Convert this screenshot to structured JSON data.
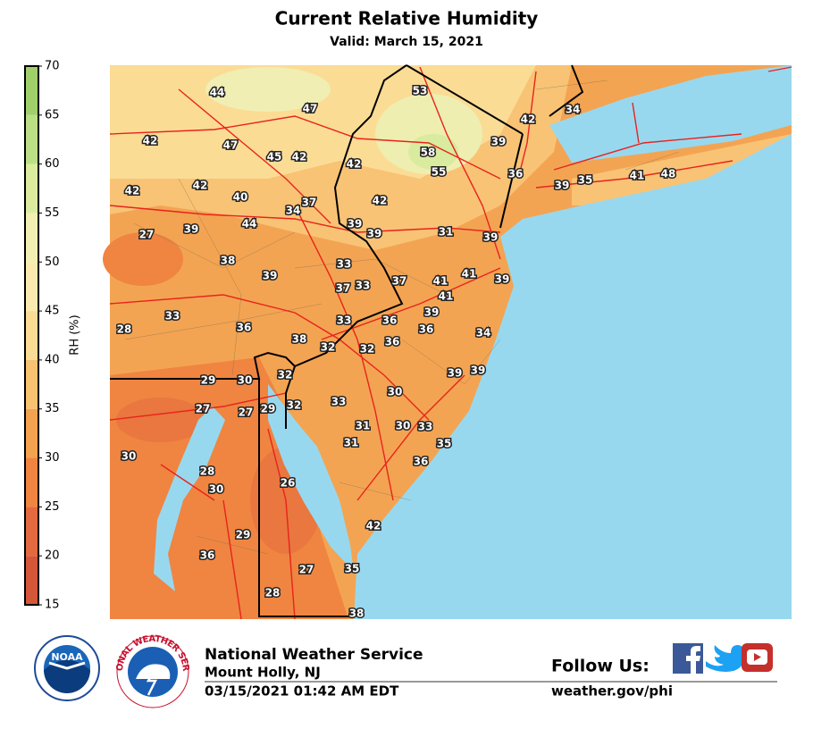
{
  "header": {
    "title": "Current Relative Humidity",
    "subtitle": "Valid: March 15, 2021"
  },
  "legend": {
    "label": "RH (%)",
    "range": [
      15,
      70
    ],
    "ticks": [
      15,
      20,
      25,
      30,
      35,
      40,
      45,
      50,
      55,
      60,
      65,
      70
    ],
    "colors": [
      "#d5573a",
      "#e26a3e",
      "#ef8541",
      "#f3a24f",
      "#f8c271",
      "#fbdc95",
      "#fbeab0",
      "#f1efb4",
      "#dcec9f",
      "#bcdf86",
      "#a1d06b"
    ]
  },
  "stations": {
    "values": [
      44,
      47,
      53,
      42,
      34,
      42,
      47,
      45,
      42,
      42,
      58,
      39,
      55,
      36,
      42,
      42,
      40,
      37,
      34,
      42,
      39,
      35,
      41,
      48,
      27,
      39,
      44,
      39,
      39,
      31,
      39,
      38,
      33,
      39,
      41,
      39,
      37,
      33,
      37,
      41,
      41,
      33,
      39,
      28,
      36,
      33,
      36,
      36,
      34,
      38,
      32,
      32,
      36,
      39,
      39,
      29,
      30,
      32,
      30,
      27,
      27,
      29,
      32,
      33,
      31,
      30,
      33,
      35,
      31,
      30,
      36,
      28,
      30,
      26,
      42,
      29,
      36,
      35,
      27,
      28,
      38
    ]
  },
  "logos": {
    "noaa": "NOAA",
    "nws": "NATIONAL WEATHER SERVICE"
  },
  "footer": {
    "org": "National Weather Service",
    "office": "Mount Holly, NJ",
    "timestamp": "03/15/2021 01:42 AM EDT",
    "follow": "Follow Us:",
    "url": "weather.gov/phi"
  }
}
